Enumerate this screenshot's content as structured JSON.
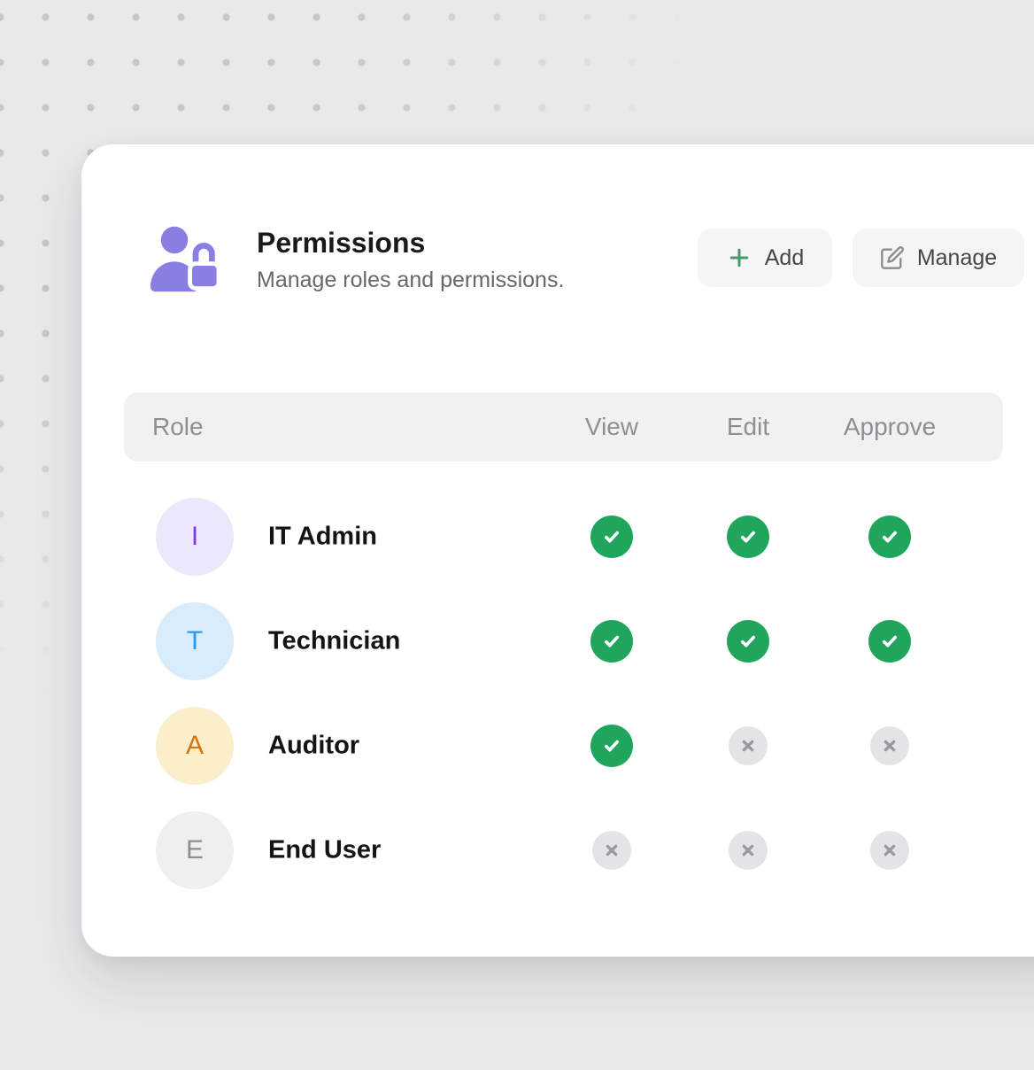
{
  "page": {
    "background_color": "#e9e9eb",
    "dot_color": "#c6c6cb",
    "card_color": "#ffffff"
  },
  "header": {
    "icon": "user-lock-icon",
    "icon_color": "#897ee2",
    "title": "Permissions",
    "subtitle": "Manage roles and permissions."
  },
  "toolbar": {
    "add_label": "Add",
    "add_icon": "plus-icon",
    "add_icon_color": "#3fa065",
    "manage_label": "Manage",
    "manage_icon": "edit-icon",
    "manage_icon_color": "#8a8a90"
  },
  "table": {
    "columns": [
      "Role",
      "View",
      "Edit",
      "Approve"
    ],
    "granted_color": "#1fa65c",
    "granted_check_color": "#ffffff",
    "denied_bg_color": "#e4e4e8",
    "denied_x_color": "#98989f",
    "roles": [
      {
        "initial": "I",
        "name": "IT Admin",
        "avatar_bg": "#ece7fb",
        "avatar_color": "#7c3aed",
        "permissions": {
          "view": true,
          "edit": true,
          "approve": true
        }
      },
      {
        "initial": "T",
        "name": "Technician",
        "avatar_bg": "#d8ecfc",
        "avatar_color": "#2b97f1",
        "permissions": {
          "view": true,
          "edit": true,
          "approve": true
        }
      },
      {
        "initial": "A",
        "name": "Auditor",
        "avatar_bg": "#fbeecb",
        "avatar_color": "#dd710f",
        "permissions": {
          "view": true,
          "edit": false,
          "approve": false
        }
      },
      {
        "initial": "E",
        "name": "End User",
        "avatar_bg": "#efeff1",
        "avatar_color": "#8e8e94",
        "permissions": {
          "view": false,
          "edit": false,
          "approve": false
        }
      }
    ]
  }
}
